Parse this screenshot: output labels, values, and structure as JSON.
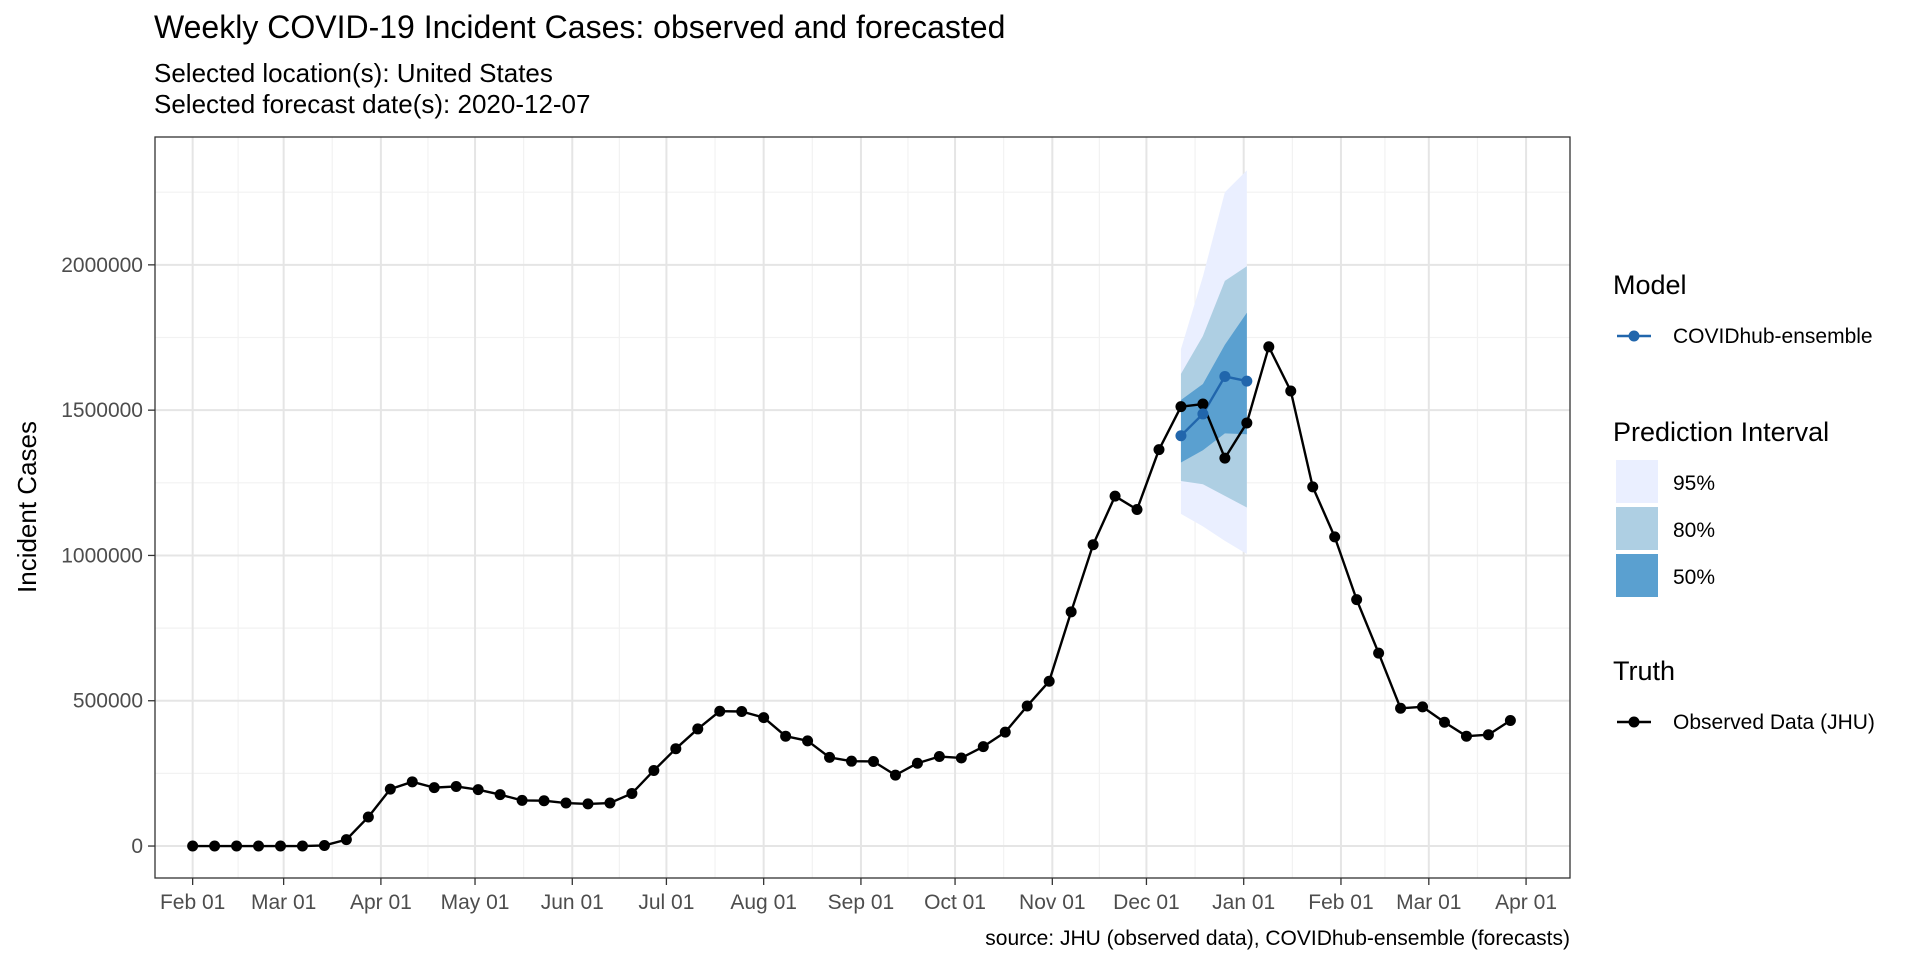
{
  "chart_data": {
    "type": "line",
    "title": "Weekly COVID-19 Incident Cases: observed and forecasted",
    "subtitle_lines": [
      "Selected location(s): United States",
      "Selected forecast date(s): 2020-12-07"
    ],
    "ylabel": "Incident Cases",
    "xlabel": "",
    "caption": "source: JHU (observed data), COVIDhub-ensemble (forecasts)",
    "x_axis": {
      "type": "date",
      "range": [
        "2020-01-20",
        "2021-04-15"
      ],
      "tick_dates": [
        "2020-02-01",
        "2020-03-01",
        "2020-04-01",
        "2020-05-01",
        "2020-06-01",
        "2020-07-01",
        "2020-08-01",
        "2020-09-01",
        "2020-10-01",
        "2020-11-01",
        "2020-12-01",
        "2021-01-01",
        "2021-02-01",
        "2021-03-01",
        "2021-04-01"
      ],
      "tick_labels": [
        "Feb 01",
        "Mar 01",
        "Apr 01",
        "May 01",
        "Jun 01",
        "Jul 01",
        "Aug 01",
        "Sep 01",
        "Oct 01",
        "Nov 01",
        "Dec 01",
        "Jan 01",
        "Feb 01",
        "Mar 01",
        "Apr 01"
      ]
    },
    "y_axis": {
      "range": [
        -110000,
        2440000
      ],
      "ticks": [
        0,
        500000,
        1000000,
        1500000,
        2000000
      ],
      "tick_labels": [
        "0",
        "500000",
        "1000000",
        "1500000",
        "2000000"
      ]
    },
    "grid": true,
    "legend_position": "right",
    "series": [
      {
        "name": "Observed Data (JHU)",
        "color": "#000000",
        "x": [
          "2020-02-01",
          "2020-02-08",
          "2020-02-15",
          "2020-02-22",
          "2020-02-29",
          "2020-03-07",
          "2020-03-14",
          "2020-03-21",
          "2020-03-28",
          "2020-04-04",
          "2020-04-11",
          "2020-04-18",
          "2020-04-25",
          "2020-05-02",
          "2020-05-09",
          "2020-05-16",
          "2020-05-23",
          "2020-05-30",
          "2020-06-06",
          "2020-06-13",
          "2020-06-20",
          "2020-06-27",
          "2020-07-04",
          "2020-07-11",
          "2020-07-18",
          "2020-07-25",
          "2020-08-01",
          "2020-08-08",
          "2020-08-15",
          "2020-08-22",
          "2020-08-29",
          "2020-09-05",
          "2020-09-12",
          "2020-09-19",
          "2020-09-26",
          "2020-10-03",
          "2020-10-10",
          "2020-10-17",
          "2020-10-24",
          "2020-10-31",
          "2020-11-07",
          "2020-11-14",
          "2020-11-21",
          "2020-11-28",
          "2020-12-05",
          "2020-12-12",
          "2020-12-19",
          "2020-12-26",
          "2021-01-02",
          "2021-01-09",
          "2021-01-16",
          "2021-01-23",
          "2021-01-30",
          "2021-02-06",
          "2021-02-13",
          "2021-02-20",
          "2021-02-27",
          "2021-03-06",
          "2021-03-13",
          "2021-03-20",
          "2021-03-27"
        ],
        "y": [
          0,
          0,
          0,
          0,
          0,
          0,
          2000,
          22000,
          100000,
          196000,
          221000,
          201000,
          205000,
          194000,
          177000,
          157000,
          156000,
          148000,
          145000,
          148000,
          181000,
          260000,
          335000,
          403000,
          464000,
          463000,
          442000,
          378000,
          362000,
          305000,
          292000,
          291000,
          244000,
          285000,
          308000,
          303000,
          342000,
          392000,
          482000,
          567000,
          806000,
          1037000,
          1204000,
          1158000,
          1364000,
          1512000,
          1521000,
          1335000,
          1456000,
          1718000,
          1566000,
          1236000,
          1064000,
          848000,
          664000,
          474000,
          479000,
          426000,
          378000,
          383000,
          432000
        ]
      },
      {
        "name": "COVIDhub-ensemble",
        "color": "#2166ac",
        "x": [
          "2020-12-12",
          "2020-12-19",
          "2020-12-26",
          "2021-01-02"
        ],
        "y": [
          1412000,
          1487000,
          1616000,
          1600000
        ]
      }
    ],
    "intervals": [
      {
        "name": "95%",
        "color": "#eaefff",
        "lower": [
          1143000,
          1100000,
          1050000,
          1005000
        ],
        "upper": [
          1710000,
          1960000,
          2250000,
          2325000
        ]
      },
      {
        "name": "80%",
        "color": "#aecfe3",
        "lower": [
          1256000,
          1245000,
          1205000,
          1165000
        ],
        "upper": [
          1625000,
          1755000,
          1945000,
          1995000
        ]
      },
      {
        "name": "50%",
        "color": "#5aa0d0",
        "lower": [
          1320000,
          1362000,
          1420000,
          1417000
        ],
        "upper": [
          1535000,
          1590000,
          1725000,
          1835000
        ]
      }
    ]
  },
  "legend": {
    "model_title": "Model",
    "model_items": [
      {
        "label": "COVIDhub-ensemble",
        "color": "#2166ac"
      }
    ],
    "interval_title": "Prediction Interval",
    "interval_items": [
      {
        "label": "95%",
        "color": "#eaefff"
      },
      {
        "label": "80%",
        "color": "#aecfe3"
      },
      {
        "label": "50%",
        "color": "#5aa0d0"
      }
    ],
    "truth_title": "Truth",
    "truth_items": [
      {
        "label": "Observed Data (JHU)",
        "color": "#000000"
      }
    ]
  }
}
